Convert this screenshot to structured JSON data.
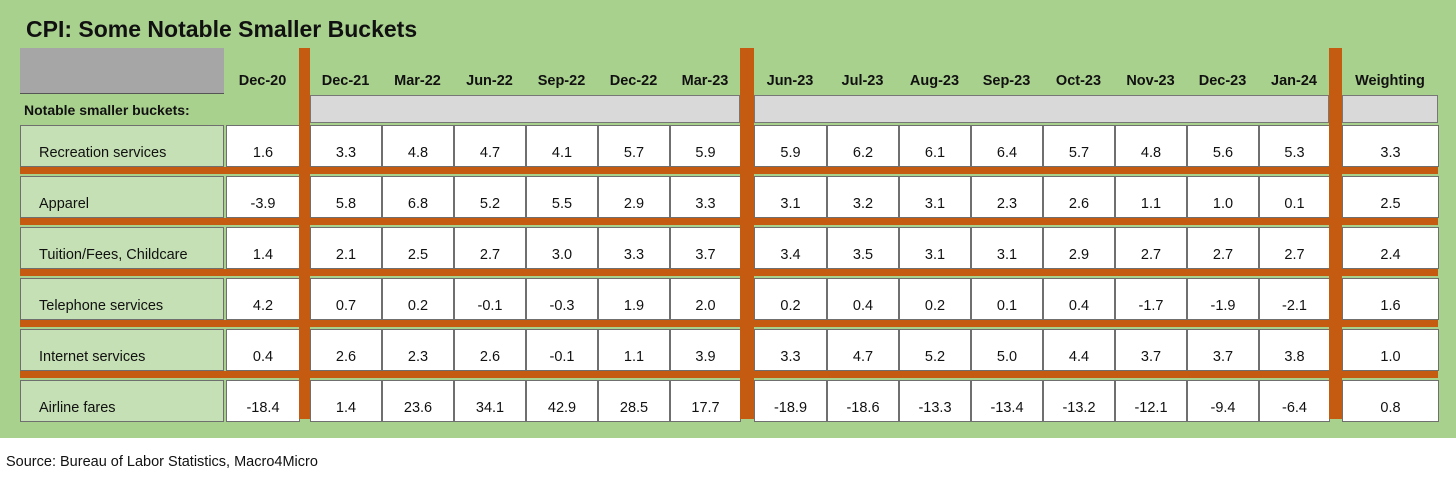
{
  "title": "CPI: Some Notable Smaller Buckets",
  "source": "Source: Bureau of Labor Statistics, Macro4Micro",
  "colors": {
    "panel_green": "#a9d18e",
    "label_green": "#c5e0b4",
    "divider_orange": "#c55a11",
    "header_gray": "#a6a6a6",
    "subheader_gray": "#d9d9d9"
  },
  "chart_data": {
    "type": "table",
    "title": "CPI: Some Notable Smaller Buckets",
    "section_label": "Notable smaller buckets:",
    "columns": [
      "Dec-20",
      "Dec-21",
      "Mar-22",
      "Jun-22",
      "Sep-22",
      "Dec-22",
      "Mar-23",
      "Jun-23",
      "Jul-23",
      "Aug-23",
      "Sep-23",
      "Oct-23",
      "Nov-23",
      "Dec-23",
      "Jan-24",
      "Weighting"
    ],
    "rows": [
      {
        "label": "Recreation services",
        "values": [
          "1.6",
          "3.3",
          "4.8",
          "4.7",
          "4.1",
          "5.7",
          "5.9",
          "5.9",
          "6.2",
          "6.1",
          "6.4",
          "5.7",
          "4.8",
          "5.6",
          "5.3",
          "3.3"
        ]
      },
      {
        "label": "Apparel",
        "values": [
          "-3.9",
          "5.8",
          "6.8",
          "5.2",
          "5.5",
          "2.9",
          "3.3",
          "3.1",
          "3.2",
          "3.1",
          "2.3",
          "2.6",
          "1.1",
          "1.0",
          "0.1",
          "2.5"
        ]
      },
      {
        "label": "Tuition/Fees, Childcare",
        "values": [
          "1.4",
          "2.1",
          "2.5",
          "2.7",
          "3.0",
          "3.3",
          "3.7",
          "3.4",
          "3.5",
          "3.1",
          "3.1",
          "2.9",
          "2.7",
          "2.7",
          "2.7",
          "2.4"
        ]
      },
      {
        "label": "Telephone services",
        "values": [
          "4.2",
          "0.7",
          "0.2",
          "-0.1",
          "-0.3",
          "1.9",
          "2.0",
          "0.2",
          "0.4",
          "0.2",
          "0.1",
          "0.4",
          "-1.7",
          "-1.9",
          "-2.1",
          "1.6"
        ]
      },
      {
        "label": "Internet services",
        "values": [
          "0.4",
          "2.6",
          "2.3",
          "2.6",
          "-0.1",
          "1.1",
          "3.9",
          "3.3",
          "4.7",
          "5.2",
          "5.0",
          "4.4",
          "3.7",
          "3.7",
          "3.8",
          "1.0"
        ]
      },
      {
        "label": "Airline fares",
        "values": [
          "-18.4",
          "1.4",
          "23.6",
          "34.1",
          "42.9",
          "28.5",
          "17.7",
          "-18.9",
          "-18.6",
          "-13.3",
          "-13.4",
          "-13.2",
          "-12.1",
          "-9.4",
          "-6.4",
          "0.8"
        ]
      }
    ]
  }
}
